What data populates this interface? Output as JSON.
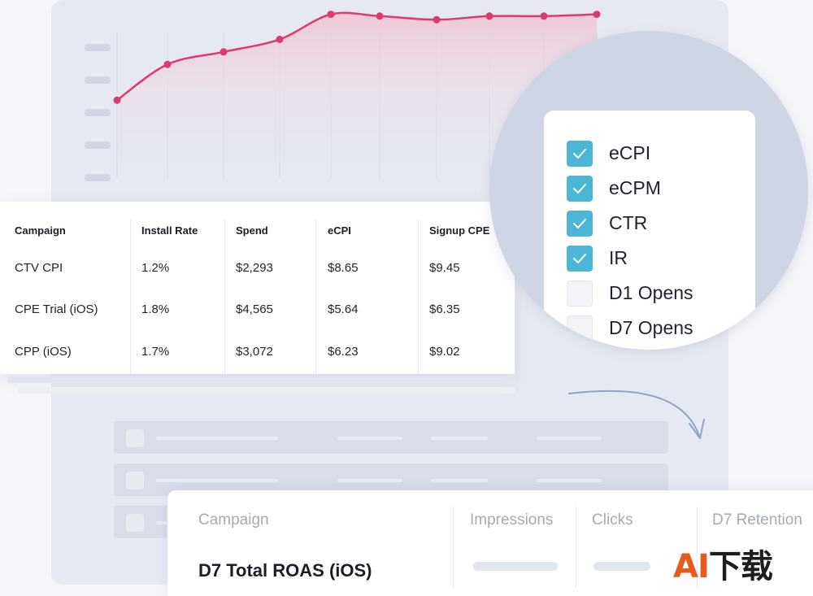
{
  "chart_data": {
    "type": "area",
    "x": [
      1,
      2,
      3,
      4,
      5,
      6,
      7,
      8,
      9,
      10
    ],
    "values": [
      0.44,
      0.64,
      0.71,
      0.78,
      0.92,
      0.91,
      0.89,
      0.91,
      0.91,
      0.92
    ],
    "ylim": [
      0,
      1
    ],
    "grid": true,
    "line_color": "#de3a6e",
    "fill_color": "#f5d2de"
  },
  "metrics_table": {
    "columns": [
      "Campaign",
      "Install Rate",
      "Spend",
      "eCPI",
      "Signup CPE"
    ],
    "rows": [
      [
        "CTV CPI",
        "1.2%",
        "$2,293",
        "$8.65",
        "$9.45"
      ],
      [
        "CPE Trial (iOS)",
        "1.8%",
        "$4,565",
        "$5.64",
        "$6.35"
      ],
      [
        "CPP (iOS)",
        "1.7%",
        "$3,072",
        "$6.23",
        "$9.02"
      ]
    ]
  },
  "metric_selector": {
    "items": [
      {
        "label": "eCPI",
        "checked": true
      },
      {
        "label": "eCPM",
        "checked": true
      },
      {
        "label": "CTR",
        "checked": true
      },
      {
        "label": "IR",
        "checked": true
      },
      {
        "label": "D1 Opens",
        "checked": false
      },
      {
        "label": "D7 Opens",
        "checked": false
      }
    ],
    "accent": "#4bb6d6"
  },
  "bottom_table": {
    "columns": [
      "Campaign",
      "Impressions",
      "Clicks",
      "D7 Retention"
    ],
    "row_campaign": "D7 Total ROAS (iOS)"
  },
  "watermark": {
    "latin": "AI",
    "cjk": "下载"
  }
}
